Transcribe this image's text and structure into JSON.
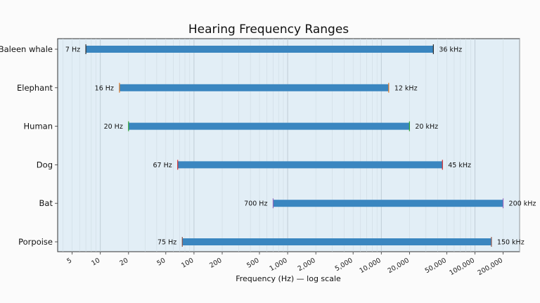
{
  "chart_data": {
    "type": "range-bar",
    "title": "Hearing Frequency Ranges",
    "xlabel": "Frequency (Hz) — log scale",
    "ylabel": "",
    "x_scale": "log",
    "xlim": [
      3.5,
      300000
    ],
    "grid": true,
    "bar_color": "#3a86c0",
    "plot_bg": "#e2eef6",
    "categories": [
      "Baleen whale",
      "Elephant",
      "Human",
      "Dog",
      "Bat",
      "Porpoise"
    ],
    "ranges": [
      {
        "name": "Baleen whale",
        "low": 7,
        "high": 36000,
        "low_label": "7 Hz",
        "high_label": "36 kHz",
        "marker_color": "#2b2b2b"
      },
      {
        "name": "Elephant",
        "low": 16,
        "high": 12000,
        "low_label": "16 Hz",
        "high_label": "12 kHz",
        "marker_color": "#e07b28"
      },
      {
        "name": "Human",
        "low": 20,
        "high": 20000,
        "low_label": "20 Hz",
        "high_label": "20 kHz",
        "marker_color": "#2ca02c"
      },
      {
        "name": "Dog",
        "low": 67,
        "high": 45000,
        "low_label": "67 Hz",
        "high_label": "45 kHz",
        "marker_color": "#d62728"
      },
      {
        "name": "Bat",
        "low": 700,
        "high": 200000,
        "low_label": "700 Hz",
        "high_label": "200 kHz",
        "marker_color": "#9467bd"
      },
      {
        "name": "Porpoise",
        "low": 75,
        "high": 150000,
        "low_label": "75 Hz",
        "high_label": "150 kHz",
        "marker_color": "#8c564b"
      }
    ],
    "xticks": [
      {
        "value": 5,
        "label": "5"
      },
      {
        "value": 10,
        "label": "10"
      },
      {
        "value": 20,
        "label": "20"
      },
      {
        "value": 50,
        "label": "50"
      },
      {
        "value": 100,
        "label": "100"
      },
      {
        "value": 200,
        "label": "200"
      },
      {
        "value": 500,
        "label": "500"
      },
      {
        "value": 1000,
        "label": "1,000"
      },
      {
        "value": 2000,
        "label": "2,000"
      },
      {
        "value": 5000,
        "label": "5,000"
      },
      {
        "value": 10000,
        "label": "10,000"
      },
      {
        "value": 20000,
        "label": "20,000"
      },
      {
        "value": 50000,
        "label": "50,000"
      },
      {
        "value": 100000,
        "label": "100,000"
      },
      {
        "value": 200000,
        "label": "200,000"
      }
    ]
  }
}
